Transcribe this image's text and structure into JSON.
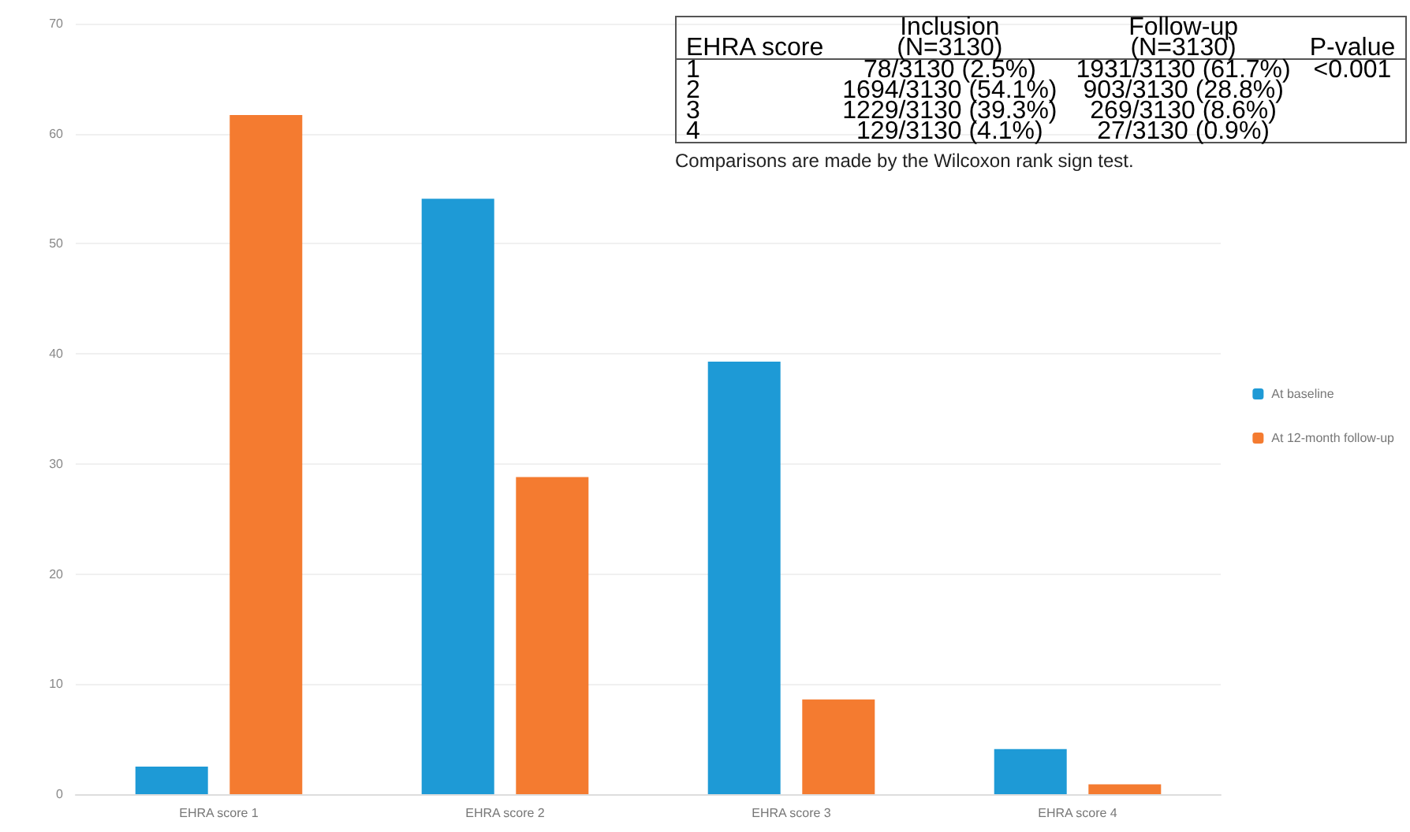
{
  "chart_data": {
    "type": "bar",
    "categories": [
      "EHRA score 1",
      "EHRA score 2",
      "EHRA score 3",
      "EHRA score 4"
    ],
    "series": [
      {
        "name": "At baseline",
        "color": "#1e9ad6",
        "values": [
          2.5,
          54.1,
          39.3,
          4.1
        ]
      },
      {
        "name": "At 12-month follow-up",
        "color": "#f47b30",
        "values": [
          61.7,
          28.8,
          8.6,
          0.9
        ]
      }
    ],
    "ylim": [
      0,
      70
    ],
    "yticks": [
      0,
      10,
      20,
      30,
      40,
      50,
      60,
      70
    ],
    "grid": "y",
    "legend": "right",
    "annotations": [
      "EHRA score",
      "Inclusion\n(N=3130)",
      "Follow-up\n(N=3130)",
      "P-value",
      "1",
      "78/3130 (2.5%)",
      "1931/3130 (61.7%)",
      "<0.001",
      "2",
      "1694/3130 (54.1%)",
      "903/3130 (28.8%)",
      "3",
      "1229/3130 (39.3%)",
      "269/3130 (8.6%)",
      "4",
      "129/3130 (4.1%)",
      "27/3130 (0.9%)",
      "Comparisons are made by the Wilcoxon rank sign test."
    ]
  }
}
